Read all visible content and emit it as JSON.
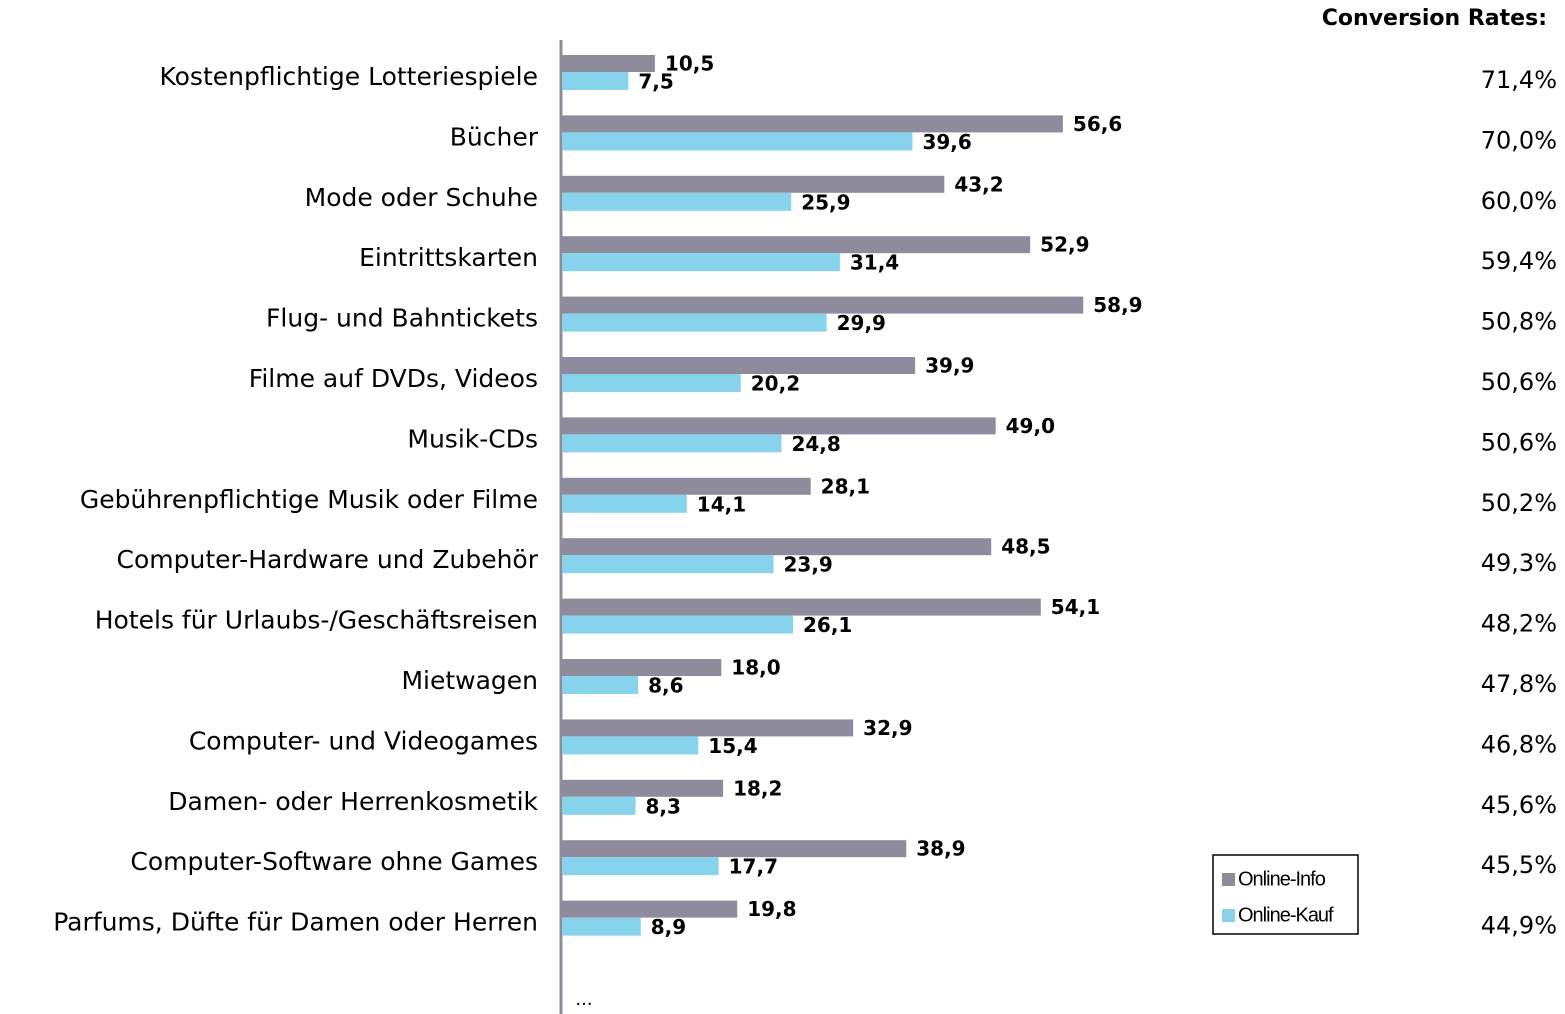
{
  "chart_data": {
    "type": "bar",
    "orientation": "horizontal",
    "categories": [
      "Kostenpflichtige Lotteriespiele",
      "Bücher",
      "Mode oder Schuhe",
      "Eintrittskarten",
      "Flug- und Bahntickets",
      "Filme auf DVDs, Videos",
      "Musik-CDs",
      "Gebührenpflichtige Musik oder Filme",
      "Computer-Hardware und Zubehör",
      "Hotels für Urlaubs-/Geschäftsreisen",
      "Mietwagen",
      "Computer- und Videogames",
      "Damen- oder Herrenkosmetik",
      "Computer-Software ohne Games",
      "Parfums, Düfte für Damen oder Herren"
    ],
    "series": [
      {
        "name": "Online-Info",
        "color": "#8e8c9c",
        "values": [
          10.5,
          56.6,
          43.2,
          52.9,
          58.9,
          39.9,
          49.0,
          28.1,
          48.5,
          54.1,
          18.0,
          32.9,
          18.2,
          38.9,
          19.8
        ],
        "value_labels": [
          "10,5",
          "56,6",
          "43,2",
          "52,9",
          "58,9",
          "39,9",
          "49,0",
          "28,1",
          "48,5",
          "54,1",
          "18,0",
          "32,9",
          "18,2",
          "38,9",
          "19,8"
        ]
      },
      {
        "name": "Online-Kauf",
        "color": "#87d3eb",
        "values": [
          7.5,
          39.6,
          25.9,
          31.4,
          29.9,
          20.2,
          24.8,
          14.1,
          23.9,
          26.1,
          8.6,
          15.4,
          8.3,
          17.7,
          8.9
        ],
        "value_labels": [
          "7,5",
          "39,6",
          "25,9",
          "31,4",
          "29,9",
          "20,2",
          "24,8",
          "14,1",
          "23,9",
          "26,1",
          "8,6",
          "15,4",
          "8,3",
          "17,7",
          "8,9"
        ]
      }
    ],
    "conversion_rates": {
      "title": "Conversion Rates:",
      "values": [
        71.4,
        70.0,
        60.0,
        59.4,
        50.8,
        50.6,
        50.6,
        50.2,
        49.3,
        48.2,
        47.8,
        46.8,
        45.6,
        45.5,
        44.9
      ],
      "value_labels": [
        "71,4%",
        "70,0%",
        "60,0%",
        "59,4%",
        "50,8%",
        "50,6%",
        "50,6%",
        "50,2%",
        "49,3%",
        "48,2%",
        "47,8%",
        "46,8%",
        "45,6%",
        "45,5%",
        "44,9%"
      ]
    },
    "annotation": "...",
    "legend": "bottom-right"
  }
}
